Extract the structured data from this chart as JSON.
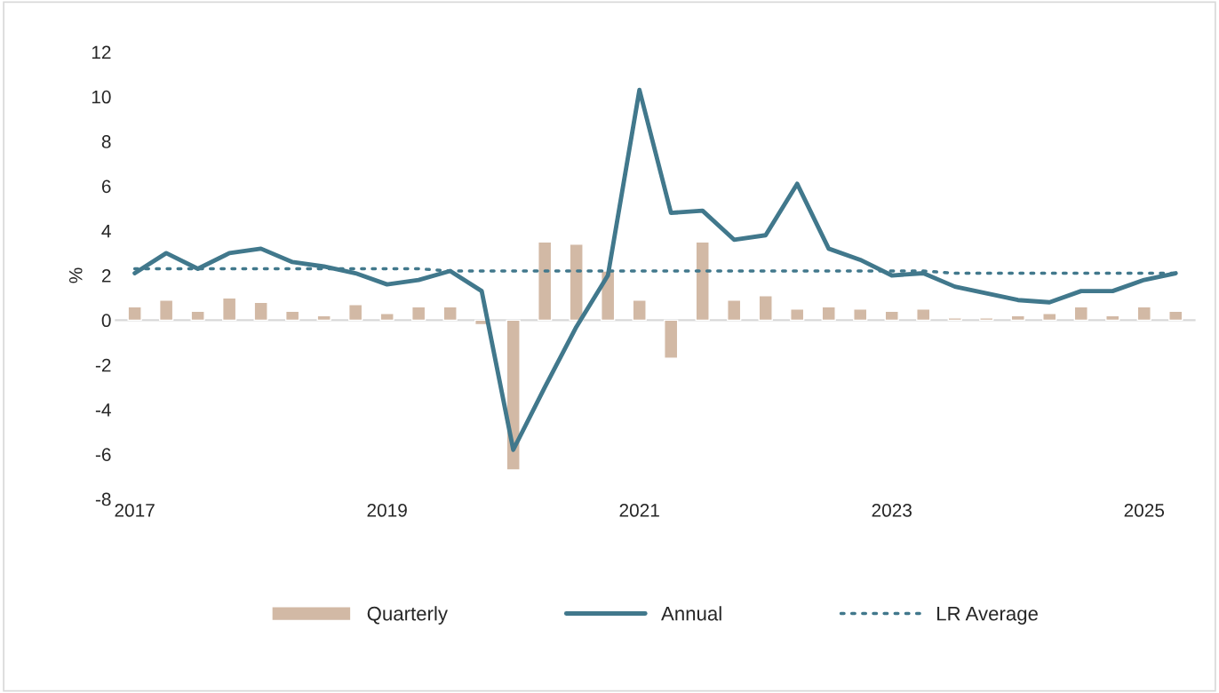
{
  "chart_data": {
    "type": "bar",
    "ylabel": "%",
    "categories": [
      "2017",
      null,
      null,
      null,
      null,
      null,
      null,
      null,
      "2019",
      null,
      null,
      null,
      null,
      null,
      null,
      null,
      "2021",
      null,
      null,
      null,
      null,
      null,
      null,
      null,
      "2023",
      null,
      null,
      null,
      null,
      null,
      null,
      null,
      "2025",
      null
    ],
    "series": [
      {
        "name": "Quarterly",
        "color": "#d2b9a5",
        "values": [
          0.6,
          0.9,
          0.4,
          1.0,
          0.8,
          0.4,
          0.2,
          0.7,
          0.3,
          0.6,
          0.6,
          -0.2,
          -6.7,
          3.5,
          3.4,
          2.2,
          0.9,
          -1.7,
          3.5,
          0.9,
          1.1,
          0.5,
          0.6,
          0.5,
          0.4,
          0.5,
          0.1,
          0.1,
          0.2,
          0.3,
          0.6,
          0.2,
          0.6,
          0.4
        ]
      },
      {
        "name": "Annual",
        "type": "line",
        "line_style": "solid",
        "color": "#41788c",
        "values": [
          2.1,
          3.0,
          2.3,
          3.0,
          3.2,
          2.6,
          2.4,
          2.1,
          1.6,
          1.8,
          2.2,
          1.3,
          -5.8,
          -3.0,
          -0.3,
          2.0,
          10.3,
          4.8,
          4.9,
          3.6,
          3.8,
          6.1,
          3.2,
          2.7,
          2.0,
          2.1,
          1.5,
          1.2,
          0.9,
          0.8,
          1.3,
          1.3,
          1.8,
          2.1
        ]
      },
      {
        "name": "LR Average",
        "type": "line",
        "line_style": "dotted",
        "color": "#41788c",
        "values": [
          2.3,
          2.3,
          2.3,
          2.3,
          2.3,
          2.3,
          2.3,
          2.3,
          2.3,
          2.3,
          2.2,
          2.2,
          2.2,
          2.2,
          2.2,
          2.2,
          2.2,
          2.2,
          2.2,
          2.2,
          2.2,
          2.2,
          2.2,
          2.2,
          2.2,
          2.2,
          2.1,
          2.1,
          2.1,
          2.1,
          2.1,
          2.1,
          2.1,
          2.1
        ]
      }
    ],
    "ylim": [
      -8,
      12
    ],
    "yticks": [
      -8,
      -6,
      -4,
      -2,
      0,
      2,
      4,
      6,
      8,
      10,
      12
    ],
    "legend": "bottom"
  }
}
